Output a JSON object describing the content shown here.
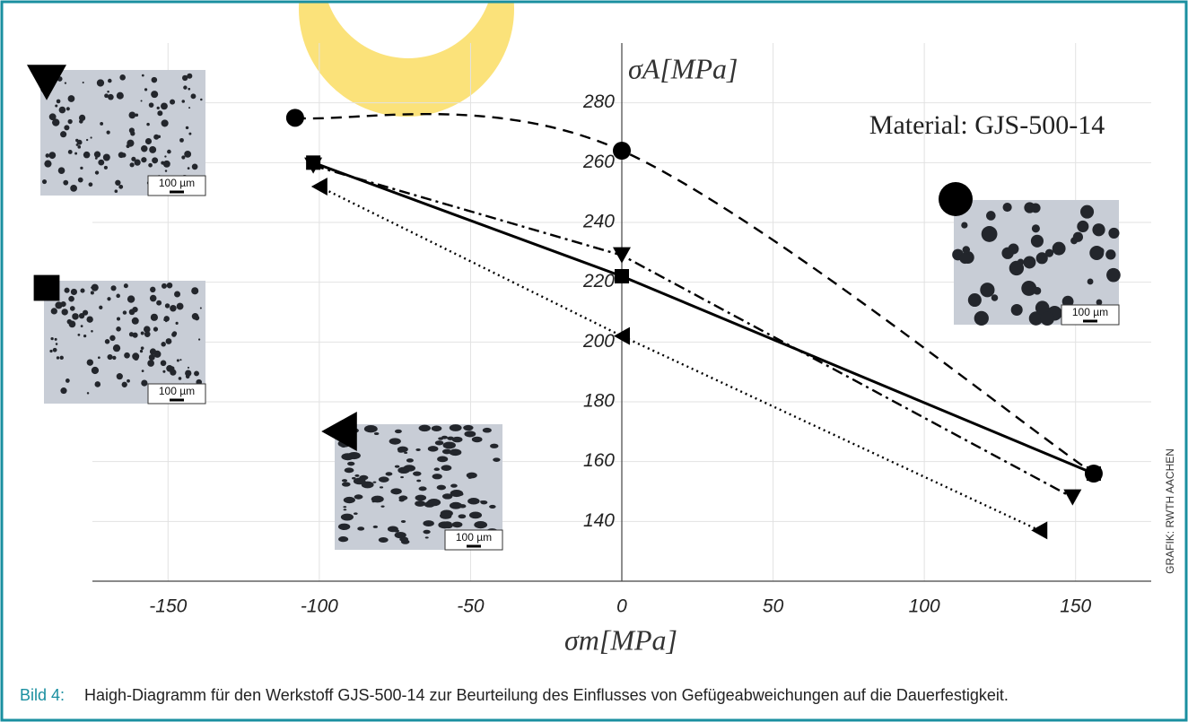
{
  "chart_data": {
    "type": "line",
    "annotation": "Material: GJS-500-14",
    "x_label": "σm[MPa]",
    "y_label": "σA[MPa]",
    "xlim": [
      -175,
      175
    ],
    "xticks": [
      -150,
      -100,
      -50,
      0,
      50,
      100,
      150
    ],
    "ylim": [
      120,
      300
    ],
    "yticks": [
      140,
      160,
      180,
      200,
      220,
      240,
      260,
      280
    ],
    "grid": true,
    "series": [
      {
        "marker": "circle",
        "dash": "dashed",
        "color": "#000000",
        "x": [
          -108,
          0,
          156
        ],
        "values": [
          275,
          264,
          156
        ]
      },
      {
        "marker": "square",
        "dash": "solid",
        "color": "#000000",
        "x": [
          -102,
          0,
          156
        ],
        "values": [
          260,
          222,
          156
        ]
      },
      {
        "marker": "triangle-down",
        "dash": "dashdot",
        "color": "#000000",
        "x": [
          -102,
          0,
          149
        ],
        "values": [
          259,
          229,
          148
        ]
      },
      {
        "marker": "triangle-left",
        "dash": "dotted",
        "color": "#000000",
        "x": [
          -100,
          0,
          138
        ],
        "values": [
          252,
          202,
          137
        ]
      }
    ]
  },
  "insets": [
    {
      "marker": "triangle-down",
      "scale_label": "100 µm"
    },
    {
      "marker": "square",
      "scale_label": "100 µm"
    },
    {
      "marker": "triangle-left",
      "scale_label": "100 µm"
    },
    {
      "marker": "circle",
      "scale_label": "100 µm"
    }
  ],
  "caption_label": "Bild 4:",
  "caption": "Haigh-Diagramm für den Werkstoff GJS-500-14 zur Beurteilung des Einflusses von Gefügeabweichungen auf die Dauerfestigkeit.",
  "credit": "GRAFIK: RWTH AACHEN"
}
